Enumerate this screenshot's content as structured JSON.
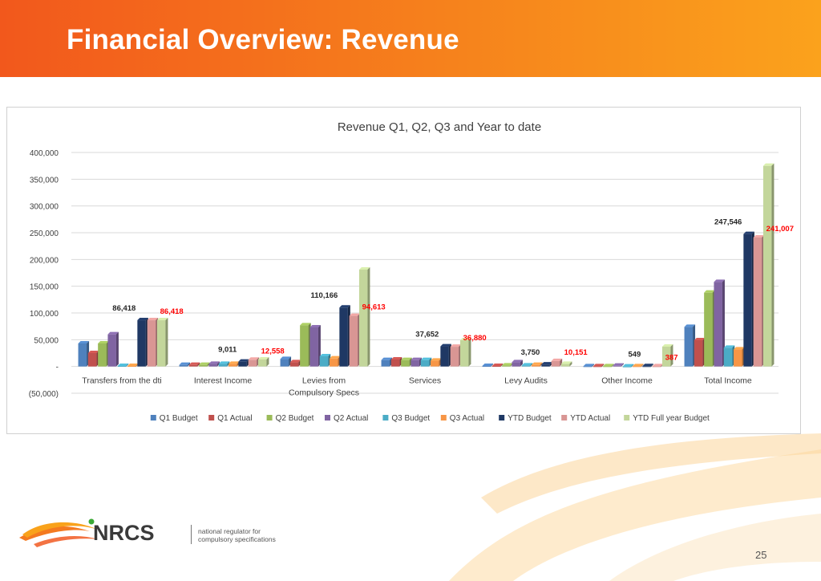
{
  "slide": {
    "title": "Financial Overview: Revenue",
    "page_number": "25"
  },
  "logo": {
    "text": "NRCS",
    "tagline_line1": "national regulator for",
    "tagline_line2": "compulsory specifications"
  },
  "chart_data": {
    "type": "bar",
    "title": "Revenue  Q1, Q2, Q3 and Year to date",
    "xlabel": "",
    "ylabel": "",
    "ylim": [
      -50000,
      400000
    ],
    "yticks": [
      -50000,
      0,
      50000,
      100000,
      150000,
      200000,
      250000,
      300000,
      350000,
      400000
    ],
    "ytick_labels": [
      "(50,000)",
      "-",
      "50,000",
      "100,000",
      "150,000",
      "200,000",
      "250,000",
      "300,000",
      "350,000",
      "400,000"
    ],
    "grid": true,
    "legend_position": "bottom",
    "categories": [
      [
        "Transfers from the dti"
      ],
      [
        "Interest Income"
      ],
      [
        "Levies from",
        "Compulsory Specs"
      ],
      [
        "Services"
      ],
      [
        "Levy Audits"
      ],
      [
        "Other Income"
      ],
      [
        "Total Income"
      ]
    ],
    "series": [
      {
        "name": "Q1 Budget",
        "color": "#4f81bd",
        "values": [
          43000,
          3000,
          14000,
          12000,
          1000,
          500,
          74000
        ]
      },
      {
        "name": "Q1 Actual",
        "color": "#c0504d",
        "values": [
          25000,
          3000,
          8000,
          13000,
          1000,
          500,
          49000
        ]
      },
      {
        "name": "Q2 Budget",
        "color": "#9bbb59",
        "values": [
          43000,
          3000,
          77000,
          12000,
          2000,
          500,
          138000
        ]
      },
      {
        "name": "Q2 Actual",
        "color": "#8064a2",
        "values": [
          60000,
          5000,
          73000,
          12000,
          8000,
          1500,
          158000
        ]
      },
      {
        "name": "Q3 Budget",
        "color": "#4bacc6",
        "values": [
          1000,
          5000,
          19000,
          12000,
          2000,
          -1000,
          35000
        ]
      },
      {
        "name": "Q3 Actual",
        "color": "#f79646",
        "values": [
          1000,
          5000,
          15000,
          11000,
          3000,
          500,
          32000
        ]
      },
      {
        "name": "YTD Budget",
        "color": "#1f3864",
        "values": [
          86418,
          9011,
          110166,
          37652,
          3750,
          549,
          247546
        ]
      },
      {
        "name": "YTD Actual",
        "color": "#d99694",
        "values": [
          86418,
          12558,
          94613,
          36880,
          10151,
          387,
          241007
        ]
      },
      {
        "name": "YTD Full year Budget",
        "color": "#c3d69b",
        "values": [
          86418,
          13000,
          181000,
          49000,
          5000,
          37000,
          375000
        ]
      }
    ],
    "data_labels": [
      {
        "category": 0,
        "text": "86,418",
        "color": "#262626",
        "value": 86418,
        "side": "left"
      },
      {
        "category": 0,
        "text": "86,418",
        "color": "#ff0000",
        "value": 86418,
        "side": "right"
      },
      {
        "category": 1,
        "text": "9,011",
        "color": "#262626",
        "value": 9011,
        "side": "left"
      },
      {
        "category": 1,
        "text": "12,558",
        "color": "#ff0000",
        "value": 12558,
        "side": "right"
      },
      {
        "category": 2,
        "text": "110,166",
        "color": "#262626",
        "value": 110166,
        "side": "left"
      },
      {
        "category": 2,
        "text": "94,613",
        "color": "#ff0000",
        "value": 94613,
        "side": "right"
      },
      {
        "category": 3,
        "text": "37,652",
        "color": "#262626",
        "value": 37652,
        "side": "left"
      },
      {
        "category": 3,
        "text": "36,880",
        "color": "#ff0000",
        "value": 36880,
        "side": "right"
      },
      {
        "category": 4,
        "text": "3,750",
        "color": "#262626",
        "value": 3750,
        "side": "left"
      },
      {
        "category": 4,
        "text": "10,151",
        "color": "#ff0000",
        "value": 10151,
        "side": "right"
      },
      {
        "category": 5,
        "text": "549",
        "color": "#262626",
        "value": 549,
        "side": "left"
      },
      {
        "category": 5,
        "text": "387",
        "color": "#ff0000",
        "value": 387,
        "side": "right"
      },
      {
        "category": 6,
        "text": "247,546",
        "color": "#262626",
        "value": 247546,
        "side": "left"
      },
      {
        "category": 6,
        "text": "241,007",
        "color": "#ff0000",
        "value": 241007,
        "side": "right"
      }
    ]
  }
}
